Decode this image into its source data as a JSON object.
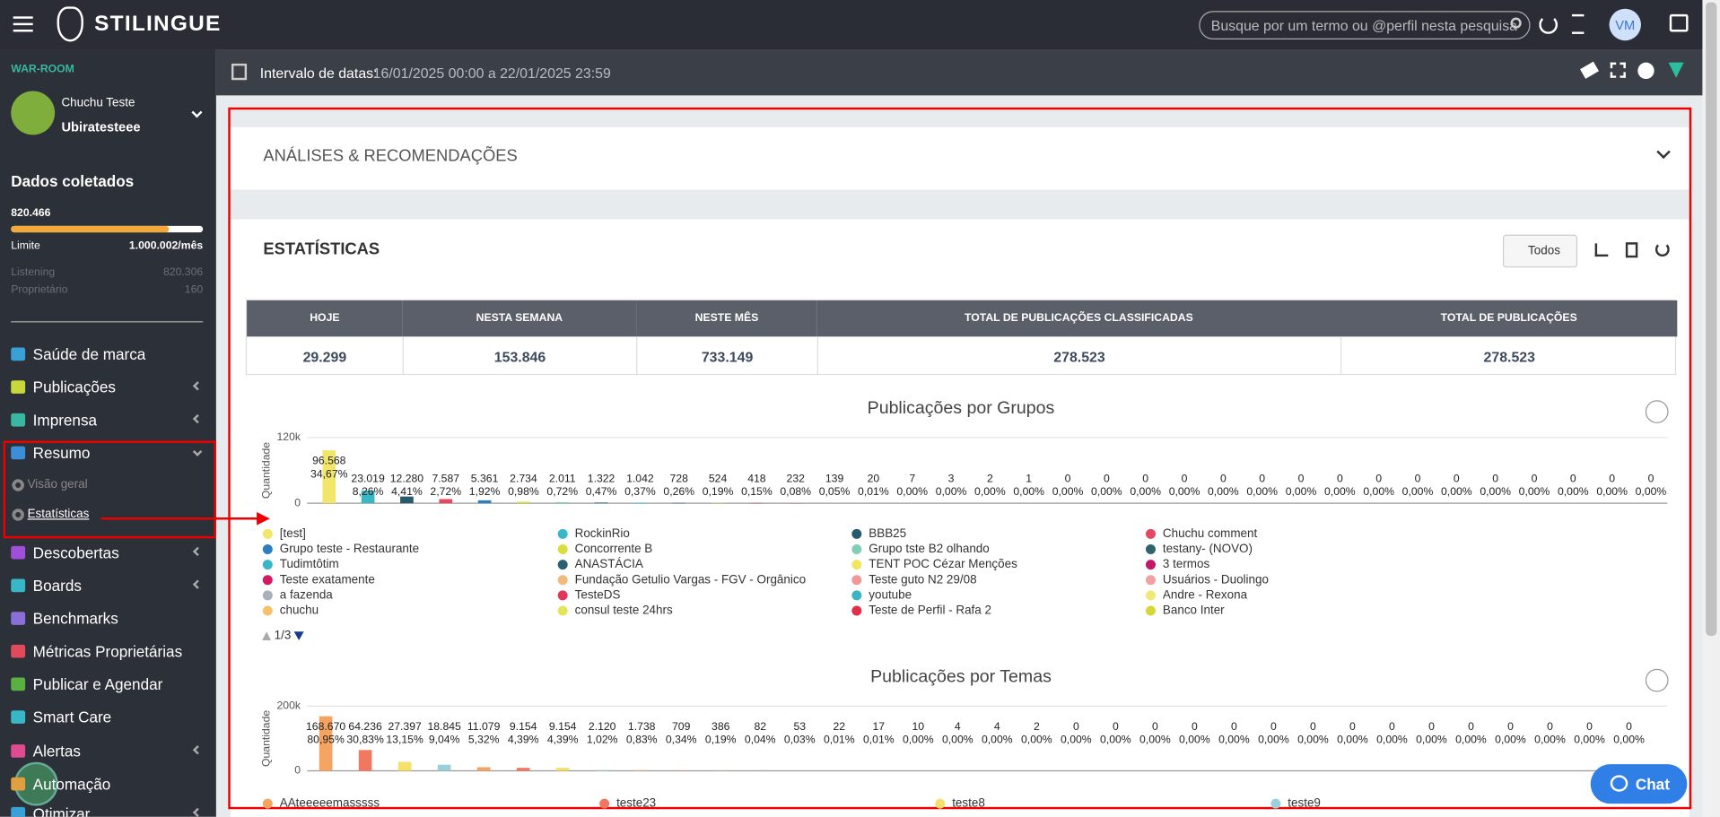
{
  "header": {
    "brand": "STILINGUE",
    "search_placeholder": "Busque por um termo ou @perfil nesta pesquisa",
    "avatar": "VM"
  },
  "sidebar": {
    "section": "WAR-ROOM",
    "user_name": "Chuchu Teste",
    "account": "Ubiratesteee",
    "collected_title": "Dados coletados",
    "collected_value": "820.466",
    "usage_fill": 82,
    "limit_label": "Limite",
    "limit_value": "1.000.002/mês",
    "listening_label": "Listening",
    "listening_value": "820.306",
    "owner_label": "Proprietário",
    "owner_value": "160",
    "menu": [
      {
        "label": "Saúde de marca",
        "color": "#3aa0d8",
        "arrow": false
      },
      {
        "label": "Publicações",
        "color": "#c8d83a",
        "arrow": true
      },
      {
        "label": "Imprensa",
        "color": "#3ab7a0",
        "arrow": true
      },
      {
        "label": "Resumo",
        "color": "#3a8fd8",
        "arrow": true
      },
      {
        "label": "Descobertas",
        "color": "#a050d8",
        "arrow": true
      },
      {
        "label": "Boards",
        "color": "#3ab7c7",
        "arrow": true
      },
      {
        "label": "Benchmarks",
        "color": "#8a6fd8",
        "arrow": false
      },
      {
        "label": "Métricas Proprietárias",
        "color": "#e04a5a",
        "arrow": false
      },
      {
        "label": "Publicar e Agendar",
        "color": "#5ab040",
        "arrow": false
      },
      {
        "label": "Smart Care",
        "color": "#3ab7c7",
        "arrow": false
      },
      {
        "label": "Alertas",
        "color": "#e04a90",
        "arrow": true
      },
      {
        "label": "Automação",
        "color": "#e0a040",
        "arrow": false
      },
      {
        "label": "Otimizar",
        "color": "#3aa0d8",
        "arrow": true
      }
    ],
    "submenu": [
      "Visão geral",
      "Estatísticas"
    ]
  },
  "toolbar": {
    "label": "Intervalo de datas:",
    "range": "16/01/2025 00:00 a 22/01/2025 23:59"
  },
  "analyses_title": "ANÁLISES & RECOMENDAÇÕES",
  "stats_title": "ESTATÍSTICAS",
  "filter": "Todos",
  "table": {
    "headers": [
      "HOJE",
      "NESTA SEMANA",
      "NESTE MÊS",
      "TOTAL DE PUBLICAÇÕES CLASSIFICADAS",
      "TOTAL DE PUBLICAÇÕES"
    ],
    "rows": [
      [
        "29.299",
        "153.846",
        "733.149",
        "278.523",
        "278.523"
      ]
    ]
  },
  "charts": [
    {
      "type": "bar",
      "title": "Publicações por Grupos",
      "y_label": "Quantidade",
      "ylim": [
        0,
        120000
      ],
      "yticks": [
        0,
        {
          "value": 120000,
          "label": "120k"
        }
      ],
      "values": [
        96568,
        23019,
        12280,
        7587,
        5361,
        2734,
        2011,
        1322,
        1042,
        728,
        524,
        418,
        232,
        139,
        20,
        7,
        3,
        2,
        1,
        0,
        0,
        0,
        0,
        0,
        0,
        0,
        0,
        0,
        0,
        0,
        0,
        0,
        0,
        0,
        0
      ],
      "value_labels": [
        "96.568",
        "23.019",
        "12.280",
        "7.587",
        "5.361",
        "2.734",
        "2.011",
        "1.322",
        "1.042",
        "728",
        "524",
        "418",
        "232",
        "139",
        "20",
        "7",
        "3",
        "2",
        "1",
        "0",
        "0",
        "0",
        "0",
        "0",
        "0",
        "0",
        "0",
        "0",
        "0",
        "0",
        "0",
        "0",
        "0",
        "0",
        "0"
      ],
      "pct_labels": [
        "34,67%",
        "8,26%",
        "4,41%",
        "2,72%",
        "1,92%",
        "0,98%",
        "0,72%",
        "0,47%",
        "0,37%",
        "0,26%",
        "0,19%",
        "0,15%",
        "0,08%",
        "0,05%",
        "0,01%",
        "0,00%",
        "0,00%",
        "0,00%",
        "0,00%",
        "0,00%",
        "0,00%",
        "0,00%",
        "0,00%",
        "0,00%",
        "0,00%",
        "0,00%",
        "0,00%",
        "0,00%",
        "0,00%",
        "0,00%",
        "0,00%",
        "0,00%",
        "0,00%",
        "0,00%",
        "0,00%"
      ],
      "legend": [
        {
          "name": "[test]",
          "color": "#f1e66a"
        },
        {
          "name": "RockinRio",
          "color": "#3ab7c6"
        },
        {
          "name": "BBB25",
          "color": "#285a6e"
        },
        {
          "name": "Chuchu comment",
          "color": "#e84560"
        },
        {
          "name": "Grupo teste - Restaurante",
          "color": "#2b7fc0"
        },
        {
          "name": "Concorrente B",
          "color": "#d9de3e"
        },
        {
          "name": "Grupo tste B2 olhando",
          "color": "#82cdb5"
        },
        {
          "name": "testany- (NOVO)",
          "color": "#2d6470"
        },
        {
          "name": "Tudimtôtim",
          "color": "#39b6c7"
        },
        {
          "name": "ANASTÁCIA",
          "color": "#2a6070"
        },
        {
          "name": "TENT POC Cézar Menções",
          "color": "#f1e664"
        },
        {
          "name": "3 termos",
          "color": "#c2166a"
        },
        {
          "name": "Teste exatamente",
          "color": "#d11b62"
        },
        {
          "name": "Fundação Getulio Vargas - FGV - Orgânico",
          "color": "#f3b97a"
        },
        {
          "name": "Teste guto N2 29/08",
          "color": "#f09898"
        },
        {
          "name": "Usuários - Duolingo",
          "color": "#f2a0a0"
        },
        {
          "name": "a fazenda",
          "color": "#a8b0b8"
        },
        {
          "name": "TesteDS",
          "color": "#e2355a"
        },
        {
          "name": "youtube",
          "color": "#3bb5c4"
        },
        {
          "name": "Andre - Rexona",
          "color": "#f2e87a"
        },
        {
          "name": "chuchu",
          "color": "#f5c16a"
        },
        {
          "name": "consul teste 24hrs",
          "color": "#e3e55a"
        },
        {
          "name": "Teste de Perfil - Rafa 2",
          "color": "#e0304a"
        },
        {
          "name": "Banco Inter",
          "color": "#d7d73a"
        }
      ],
      "pager": "1/3"
    },
    {
      "type": "bar",
      "title": "Publicações por Temas",
      "y_label": "Quantidade",
      "ylim": [
        0,
        200000
      ],
      "yticks": [
        0,
        {
          "value": 200000,
          "label": "200k"
        }
      ],
      "values": [
        168670,
        64236,
        27397,
        18845,
        11079,
        9154,
        9154,
        2120,
        1738,
        709,
        386,
        82,
        53,
        22,
        17,
        10,
        4,
        4,
        2,
        0,
        0,
        0,
        0,
        0,
        0,
        0,
        0,
        0,
        0,
        0,
        0,
        0,
        0,
        0
      ],
      "value_labels": [
        "168.670",
        "64.236",
        "27.397",
        "18.845",
        "11.079",
        "9.154",
        "9.154",
        "2.120",
        "1.738",
        "709",
        "386",
        "82",
        "53",
        "22",
        "17",
        "10",
        "4",
        "4",
        "2",
        "0",
        "0",
        "0",
        "0",
        "0",
        "0",
        "0",
        "0",
        "0",
        "0",
        "0",
        "0",
        "0",
        "0",
        "0"
      ],
      "pct_labels": [
        "80,95%",
        "30,83%",
        "13,15%",
        "9,04%",
        "5,32%",
        "4,39%",
        "4,39%",
        "1,02%",
        "0,83%",
        "0,34%",
        "0,19%",
        "0,04%",
        "0,03%",
        "0,01%",
        "0,01%",
        "0,00%",
        "0,00%",
        "0,00%",
        "0,00%",
        "0,00%",
        "0,00%",
        "0,00%",
        "0,00%",
        "0,00%",
        "0,00%",
        "0,00%",
        "0,00%",
        "0,00%",
        "0,00%",
        "0,00%",
        "0,00%",
        "0,00%",
        "0,00%",
        "0,00%"
      ],
      "legend": [
        {
          "name": "AAteeeeemasssss",
          "color": "#f4a460"
        },
        {
          "name": "teste23",
          "color": "#f07860"
        },
        {
          "name": "teste8",
          "color": "#f5e06a"
        },
        {
          "name": "teste9",
          "color": "#9ad0dc"
        }
      ]
    }
  ],
  "chat": "Chat"
}
